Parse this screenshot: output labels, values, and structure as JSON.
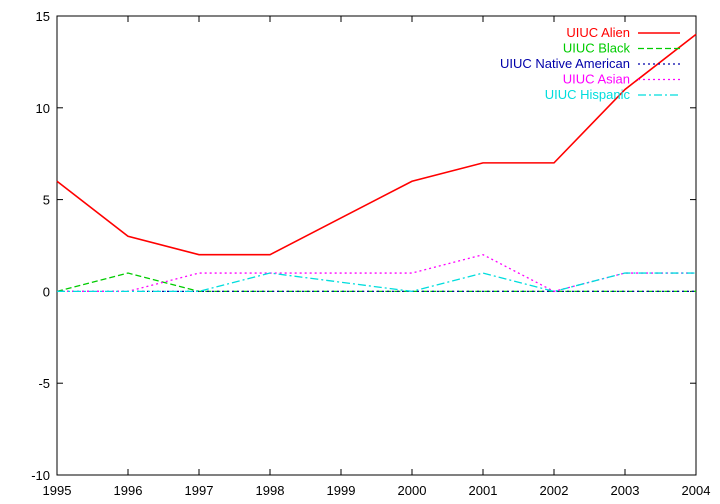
{
  "chart_data": {
    "type": "line",
    "title": "",
    "xlabel": "",
    "ylabel": "",
    "xlim": [
      1995,
      2004
    ],
    "ylim": [
      -10,
      15
    ],
    "x": [
      1995,
      1996,
      1997,
      1998,
      1999,
      2000,
      2001,
      2002,
      2003,
      2004
    ],
    "x_ticks": [
      "1995",
      "1996",
      "1997",
      "1998",
      "1999",
      "2000",
      "2001",
      "2002",
      "2003",
      "2004"
    ],
    "y_ticks": [
      -10,
      -5,
      0,
      5,
      10,
      15
    ],
    "y_tick_labels": [
      "-10",
      "-5",
      "0",
      "5",
      "10",
      "15"
    ],
    "grid": false,
    "legend_position": "top-right",
    "series": [
      {
        "name": "UIUC Alien",
        "color": "#ff0000",
        "dash": "solid",
        "values": [
          6,
          3,
          2,
          2,
          4,
          6,
          7,
          7,
          11,
          14
        ]
      },
      {
        "name": "UIUC Black",
        "color": "#00cc00",
        "dash": "dashed",
        "values": [
          0,
          1,
          0,
          0,
          0,
          0,
          0,
          0,
          0,
          0
        ]
      },
      {
        "name": "UIUC Native American",
        "color": "#0000aa",
        "dash": "dotted",
        "values": [
          0,
          0,
          0,
          0,
          0,
          0,
          0,
          0,
          0,
          0
        ]
      },
      {
        "name": "UIUC Asian",
        "color": "#ff00ff",
        "dash": "dotted",
        "values": [
          0,
          0,
          1,
          1,
          1,
          1,
          2,
          0,
          1,
          1
        ]
      },
      {
        "name": "UIUC Hispanic",
        "color": "#00dddd",
        "dash": "dashdot",
        "values": [
          0,
          0,
          0,
          1,
          0.5,
          0,
          1,
          0,
          1,
          1
        ]
      }
    ]
  }
}
